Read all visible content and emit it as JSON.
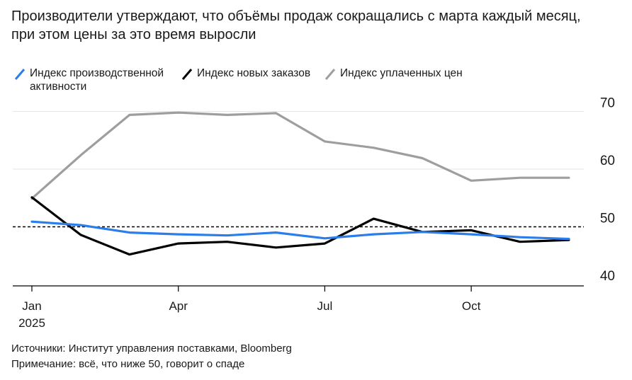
{
  "title": {
    "line1": "Производители утверждают, что объёмы продаж сокращались с марта каждый месяц,",
    "line2": "при этом цены за это время выросли"
  },
  "legend": [
    {
      "label_line1": "Индекс производственной",
      "label_line2": "активности",
      "color": "#2b7de9"
    },
    {
      "label_line1": "Индекс новых заказов",
      "label_line2": "",
      "color": "#000000"
    },
    {
      "label_line1": "Индекс уплаченных цен",
      "label_line2": "",
      "color": "#9e9e9e"
    }
  ],
  "chart_data": {
    "type": "line",
    "x": [
      "2025-01",
      "2025-02",
      "2025-03",
      "2025-04",
      "2025-05",
      "2025-06",
      "2025-07",
      "2025-08",
      "2025-09",
      "2025-10",
      "2025-11",
      "2025-12"
    ],
    "x_tick_labels": [
      {
        "x": "2025-01",
        "line1": "Jan",
        "line2": "2025"
      },
      {
        "x": "2025-04",
        "line1": "Apr",
        "line2": ""
      },
      {
        "x": "2025-07",
        "line1": "Jul",
        "line2": ""
      },
      {
        "x": "2025-10",
        "line1": "Oct",
        "line2": ""
      }
    ],
    "y_ticks": [
      40,
      50,
      60,
      70
    ],
    "ylim": [
      40,
      72
    ],
    "reference_line": 50,
    "grid": true,
    "series": [
      {
        "name": "Индекс производственной активности",
        "color": "#2b7de9",
        "values": [
          50.9,
          50.3,
          49.0,
          48.7,
          48.5,
          49.0,
          48.0,
          48.7,
          49.1,
          48.7,
          48.2,
          47.9
        ]
      },
      {
        "name": "Индекс новых заказов",
        "color": "#000000",
        "values": [
          55.1,
          48.6,
          45.2,
          47.1,
          47.4,
          46.4,
          47.1,
          51.4,
          49.1,
          49.4,
          47.4,
          47.7
        ]
      },
      {
        "name": "Индекс уплаченных цен",
        "color": "#9e9e9e",
        "values": [
          54.9,
          62.4,
          69.4,
          69.8,
          69.4,
          69.7,
          64.8,
          63.7,
          61.9,
          58.0,
          58.5,
          58.5
        ]
      }
    ]
  },
  "footer": {
    "source": "Источники: Институт управления поставками, Bloomberg",
    "note": "Примечание: всё, что ниже 50, говорит о спаде"
  }
}
